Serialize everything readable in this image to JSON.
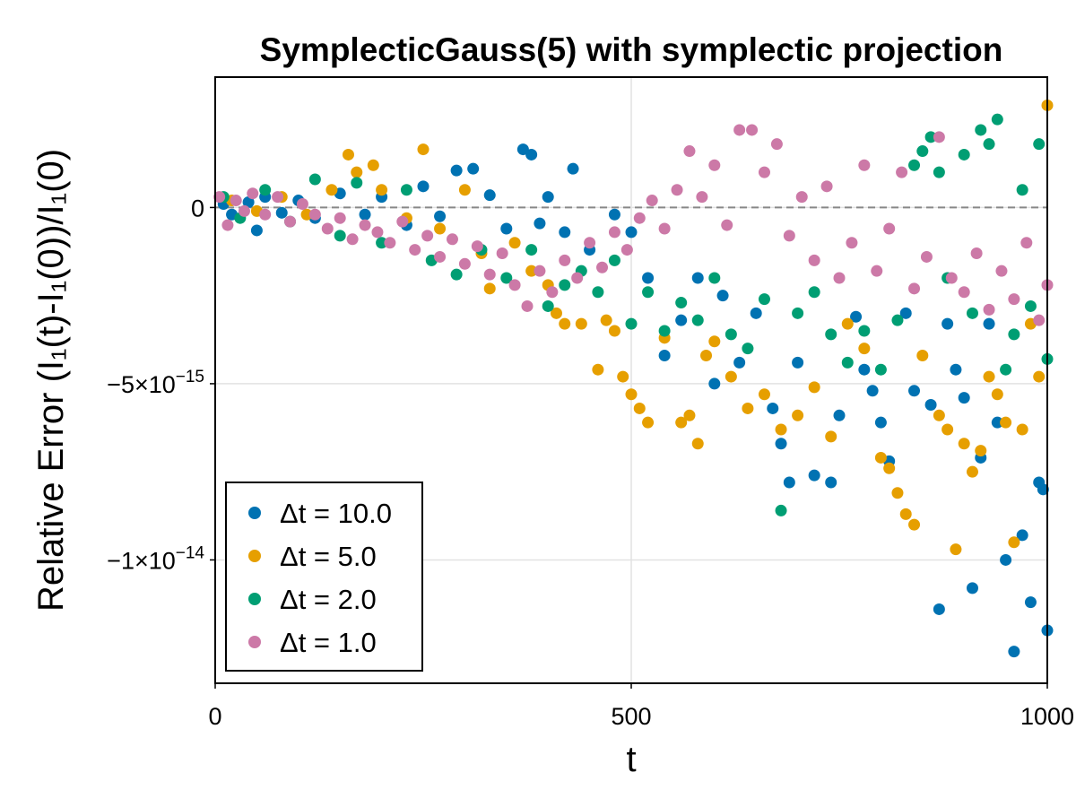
{
  "chart_data": {
    "type": "scatter",
    "title": "SymplecticGauss(5) with symplectic projection",
    "xlabel": "t",
    "ylabel": "Relative Error (I₁(t)-I₁(0))/I₁(0)",
    "xlim": [
      0,
      1000
    ],
    "ylim": [
      -1.35e-14,
      3.7e-15
    ],
    "x_ticks": [
      0,
      500,
      1000
    ],
    "x_tick_labels": [
      "0",
      "500",
      "1000"
    ],
    "y_ticks": [
      0,
      -5e-15,
      -1e-14
    ],
    "y_tick_labels": [
      "0",
      "−5×10",
      "−1×10"
    ],
    "y_tick_exponents": [
      "",
      "−15",
      "−14"
    ],
    "grid": true,
    "reference_line": 0,
    "legend_position": "bottom-left",
    "series": [
      {
        "name": "Δt = 10.0",
        "color": "#0072b2",
        "points": [
          [
            10,
            1e-16
          ],
          [
            20,
            -2e-16
          ],
          [
            40,
            1.5e-16
          ],
          [
            50,
            -6.5e-16
          ],
          [
            60,
            3e-16
          ],
          [
            80,
            -1.5e-16
          ],
          [
            100,
            2e-16
          ],
          [
            120,
            -3e-16
          ],
          [
            150,
            4e-16
          ],
          [
            180,
            -2e-16
          ],
          [
            200,
            3e-16
          ],
          [
            230,
            -5e-16
          ],
          [
            250,
            6e-16
          ],
          [
            270,
            -2.5e-16
          ],
          [
            290,
            1.05e-15
          ],
          [
            310,
            1.1e-15
          ],
          [
            330,
            3.5e-16
          ],
          [
            350,
            -6e-16
          ],
          [
            370,
            1.65e-15
          ],
          [
            380,
            1.5e-15
          ],
          [
            390,
            -4.5e-16
          ],
          [
            400,
            3e-16
          ],
          [
            420,
            -7e-16
          ],
          [
            430,
            1.1e-15
          ],
          [
            450,
            -1.2e-15
          ],
          [
            480,
            -2e-16
          ],
          [
            500,
            -7e-16
          ],
          [
            520,
            -2e-15
          ],
          [
            540,
            -4.2e-15
          ],
          [
            560,
            -3.2e-15
          ],
          [
            580,
            -2e-15
          ],
          [
            600,
            -5e-15
          ],
          [
            610,
            -2.5e-15
          ],
          [
            630,
            -4.4e-15
          ],
          [
            650,
            -3e-15
          ],
          [
            670,
            -5.7e-15
          ],
          [
            680,
            -6.7e-15
          ],
          [
            690,
            -7.8e-15
          ],
          [
            700,
            -4.4e-15
          ],
          [
            720,
            -7.6e-15
          ],
          [
            740,
            -7.8e-15
          ],
          [
            750,
            -5.9e-15
          ],
          [
            770,
            -3.1e-15
          ],
          [
            780,
            -4.6e-15
          ],
          [
            790,
            -5.2e-15
          ],
          [
            800,
            -6.1e-15
          ],
          [
            810,
            -7.2e-15
          ],
          [
            830,
            -3e-15
          ],
          [
            840,
            -5.2e-15
          ],
          [
            860,
            -5.6e-15
          ],
          [
            870,
            -1.14e-14
          ],
          [
            880,
            -3.3e-15
          ],
          [
            890,
            -4.6e-15
          ],
          [
            900,
            -5.4e-15
          ],
          [
            910,
            -1.08e-14
          ],
          [
            920,
            -7.1e-15
          ],
          [
            930,
            -3.3e-15
          ],
          [
            940,
            -6.1e-15
          ],
          [
            950,
            -1e-14
          ],
          [
            960,
            -1.26e-14
          ],
          [
            970,
            -9.3e-15
          ],
          [
            980,
            -1.12e-14
          ],
          [
            990,
            -7.8e-15
          ],
          [
            995,
            -8e-15
          ],
          [
            1000,
            -1.2e-14
          ]
        ]
      },
      {
        "name": "Δt = 5.0",
        "color": "#e69f00",
        "points": [
          [
            20,
            2e-16
          ],
          [
            50,
            -1e-16
          ],
          [
            80,
            3e-16
          ],
          [
            110,
            -2e-16
          ],
          [
            140,
            5e-16
          ],
          [
            160,
            1.5e-15
          ],
          [
            170,
            1e-15
          ],
          [
            190,
            1.2e-15
          ],
          [
            200,
            5e-16
          ],
          [
            230,
            -3e-16
          ],
          [
            250,
            1.65e-15
          ],
          [
            270,
            -6e-16
          ],
          [
            300,
            5e-16
          ],
          [
            320,
            -1.3e-15
          ],
          [
            330,
            -2.3e-15
          ],
          [
            360,
            -1e-15
          ],
          [
            380,
            -1.8e-15
          ],
          [
            400,
            -2.2e-15
          ],
          [
            410,
            -3e-15
          ],
          [
            420,
            -3.3e-15
          ],
          [
            440,
            -3.3e-15
          ],
          [
            460,
            -4.6e-15
          ],
          [
            470,
            -3.2e-15
          ],
          [
            480,
            -3.5e-15
          ],
          [
            490,
            -4.8e-15
          ],
          [
            500,
            -5.3e-15
          ],
          [
            510,
            -5.7e-15
          ],
          [
            520,
            -6.1e-15
          ],
          [
            540,
            -3.7e-15
          ],
          [
            560,
            -6.1e-15
          ],
          [
            570,
            -5.9e-15
          ],
          [
            580,
            -6.7e-15
          ],
          [
            590,
            -4.2e-15
          ],
          [
            600,
            -3.8e-15
          ],
          [
            620,
            -4.8e-15
          ],
          [
            640,
            -5.7e-15
          ],
          [
            660,
            -5.3e-15
          ],
          [
            680,
            -6.3e-15
          ],
          [
            700,
            -5.9e-15
          ],
          [
            720,
            -5.1e-15
          ],
          [
            740,
            -6.5e-15
          ],
          [
            760,
            -3.3e-15
          ],
          [
            780,
            -4e-15
          ],
          [
            800,
            -7.1e-15
          ],
          [
            810,
            -7.4e-15
          ],
          [
            820,
            -8.1e-15
          ],
          [
            830,
            -8.7e-15
          ],
          [
            840,
            -9e-15
          ],
          [
            850,
            -4.2e-15
          ],
          [
            870,
            -5.9e-15
          ],
          [
            880,
            -6.3e-15
          ],
          [
            890,
            -9.7e-15
          ],
          [
            900,
            -6.7e-15
          ],
          [
            910,
            -7.5e-15
          ],
          [
            920,
            -6.9e-15
          ],
          [
            930,
            -4.8e-15
          ],
          [
            940,
            -5.3e-15
          ],
          [
            950,
            -6.1e-15
          ],
          [
            960,
            -9.5e-15
          ],
          [
            970,
            -6.3e-15
          ],
          [
            980,
            -3.3e-15
          ],
          [
            990,
            -4.8e-15
          ],
          [
            1000,
            2.9e-15
          ]
        ]
      },
      {
        "name": "Δt = 2.0",
        "color": "#009e73",
        "points": [
          [
            10,
            3e-16
          ],
          [
            30,
            -3e-16
          ],
          [
            60,
            5e-16
          ],
          [
            90,
            -4e-16
          ],
          [
            120,
            8e-16
          ],
          [
            150,
            -8e-16
          ],
          [
            170,
            7e-16
          ],
          [
            200,
            -1e-15
          ],
          [
            230,
            5e-16
          ],
          [
            260,
            -1.5e-15
          ],
          [
            290,
            -1.9e-15
          ],
          [
            320,
            -1.2e-15
          ],
          [
            350,
            -2e-15
          ],
          [
            380,
            -1.2e-15
          ],
          [
            400,
            -2.8e-15
          ],
          [
            420,
            -2.2e-15
          ],
          [
            440,
            -1.8e-15
          ],
          [
            460,
            -2.4e-15
          ],
          [
            480,
            -1.5e-15
          ],
          [
            500,
            -3.3e-15
          ],
          [
            520,
            -2.4e-15
          ],
          [
            540,
            -3.5e-15
          ],
          [
            560,
            -2.7e-15
          ],
          [
            580,
            -3.2e-15
          ],
          [
            600,
            -2e-15
          ],
          [
            620,
            -3.6e-15
          ],
          [
            640,
            -4e-15
          ],
          [
            660,
            -2.6e-15
          ],
          [
            680,
            -8.6e-15
          ],
          [
            700,
            -3e-15
          ],
          [
            720,
            -2.4e-15
          ],
          [
            740,
            -3.6e-15
          ],
          [
            760,
            -4.4e-15
          ],
          [
            780,
            -3.5e-15
          ],
          [
            800,
            -4.6e-15
          ],
          [
            820,
            -3.2e-15
          ],
          [
            840,
            1.2e-15
          ],
          [
            850,
            1.6e-15
          ],
          [
            860,
            2e-15
          ],
          [
            870,
            1e-15
          ],
          [
            880,
            -2e-15
          ],
          [
            900,
            1.5e-15
          ],
          [
            910,
            -3e-15
          ],
          [
            920,
            2.2e-15
          ],
          [
            930,
            1.8e-15
          ],
          [
            940,
            2.5e-15
          ],
          [
            950,
            -4.6e-15
          ],
          [
            960,
            -3.6e-15
          ],
          [
            970,
            5e-16
          ],
          [
            980,
            -2.8e-15
          ],
          [
            990,
            1.8e-15
          ],
          [
            1000,
            -4.3e-15
          ]
        ]
      },
      {
        "name": "Δt = 1.0",
        "color": "#cc79a7",
        "points": [
          [
            5,
            3e-16
          ],
          [
            15,
            -5e-16
          ],
          [
            25,
            2e-16
          ],
          [
            35,
            -1e-16
          ],
          [
            45,
            4e-16
          ],
          [
            60,
            -2e-16
          ],
          [
            75,
            3e-16
          ],
          [
            90,
            -4e-16
          ],
          [
            105,
            1e-16
          ],
          [
            120,
            -2e-16
          ],
          [
            135,
            -6e-16
          ],
          [
            150,
            -3e-16
          ],
          [
            165,
            -9e-16
          ],
          [
            180,
            -5e-16
          ],
          [
            195,
            -7e-16
          ],
          [
            210,
            -1e-15
          ],
          [
            225,
            -4e-16
          ],
          [
            240,
            -1.2e-15
          ],
          [
            255,
            -8e-16
          ],
          [
            270,
            -1.4e-15
          ],
          [
            285,
            -9e-16
          ],
          [
            300,
            -1.6e-15
          ],
          [
            315,
            -1.1e-15
          ],
          [
            330,
            -1.9e-15
          ],
          [
            345,
            -1.3e-15
          ],
          [
            360,
            -2.2e-15
          ],
          [
            375,
            -2.8e-15
          ],
          [
            390,
            -1.8e-15
          ],
          [
            405,
            -2.4e-15
          ],
          [
            420,
            -1.5e-15
          ],
          [
            435,
            -2e-15
          ],
          [
            450,
            -1e-15
          ],
          [
            465,
            -1.7e-15
          ],
          [
            480,
            -7e-16
          ],
          [
            495,
            -1.2e-15
          ],
          [
            510,
            -3e-16
          ],
          [
            525,
            2e-16
          ],
          [
            540,
            -6e-16
          ],
          [
            555,
            5e-16
          ],
          [
            570,
            1.6e-15
          ],
          [
            585,
            3e-16
          ],
          [
            600,
            1.2e-15
          ],
          [
            615,
            -5e-16
          ],
          [
            630,
            2.2e-15
          ],
          [
            645,
            2.2e-15
          ],
          [
            660,
            1e-15
          ],
          [
            675,
            1.8e-15
          ],
          [
            690,
            -8e-16
          ],
          [
            705,
            3e-16
          ],
          [
            720,
            -1.5e-15
          ],
          [
            735,
            6e-16
          ],
          [
            750,
            -2e-15
          ],
          [
            765,
            -1e-15
          ],
          [
            780,
            1.2e-15
          ],
          [
            795,
            -1.8e-15
          ],
          [
            810,
            -6e-16
          ],
          [
            825,
            1e-15
          ],
          [
            840,
            -2.3e-15
          ],
          [
            855,
            -1.4e-15
          ],
          [
            870,
            2e-15
          ],
          [
            885,
            -2e-15
          ],
          [
            900,
            -2.4e-15
          ],
          [
            915,
            -1.3e-15
          ],
          [
            930,
            -2.9e-15
          ],
          [
            945,
            -1.8e-15
          ],
          [
            960,
            -2.6e-15
          ],
          [
            975,
            -1e-15
          ],
          [
            990,
            -3.2e-15
          ],
          [
            1000,
            -2.2e-15
          ]
        ]
      }
    ]
  }
}
